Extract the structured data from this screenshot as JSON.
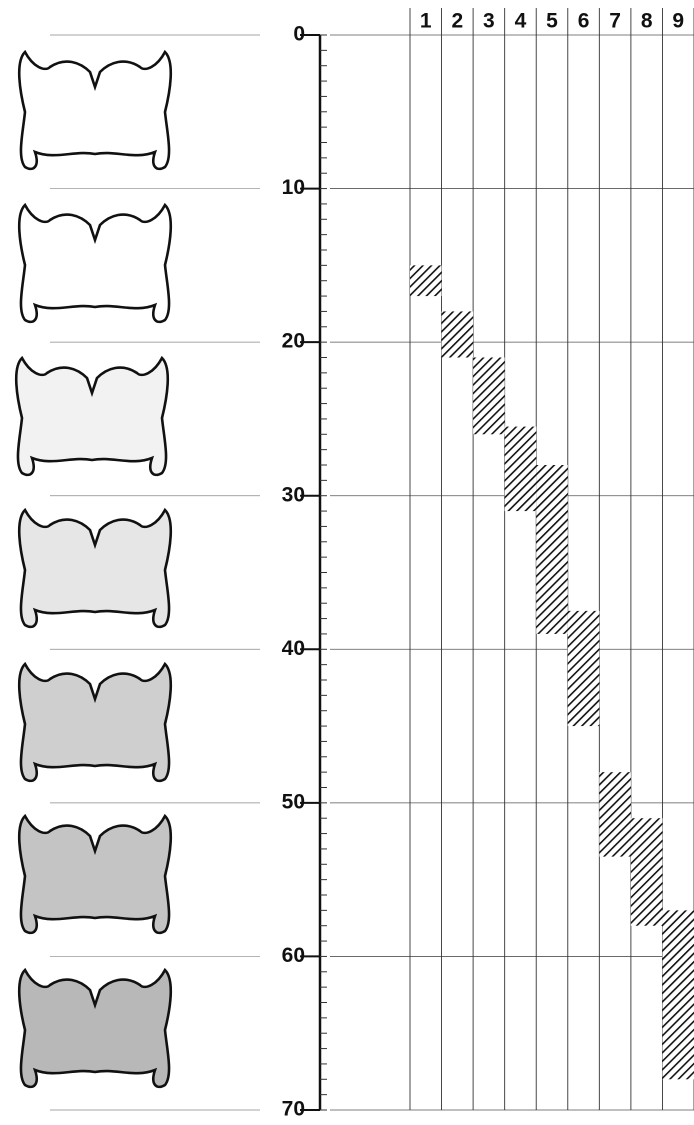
{
  "chart_data": {
    "type": "range",
    "categories": [
      "1",
      "2",
      "3",
      "4",
      "5",
      "6",
      "7",
      "8",
      "9"
    ],
    "values": [
      [
        15,
        17
      ],
      [
        18,
        21
      ],
      [
        21,
        26
      ],
      [
        25.5,
        31
      ],
      [
        28,
        39
      ],
      [
        37.5,
        45
      ],
      [
        48,
        53.5
      ],
      [
        51,
        58
      ],
      [
        57,
        68
      ]
    ],
    "color": "#111111",
    "ylim": [
      0,
      70
    ],
    "yticks": [
      0,
      10,
      20,
      30,
      40,
      50,
      60,
      70
    ],
    "grid": true
  }
}
